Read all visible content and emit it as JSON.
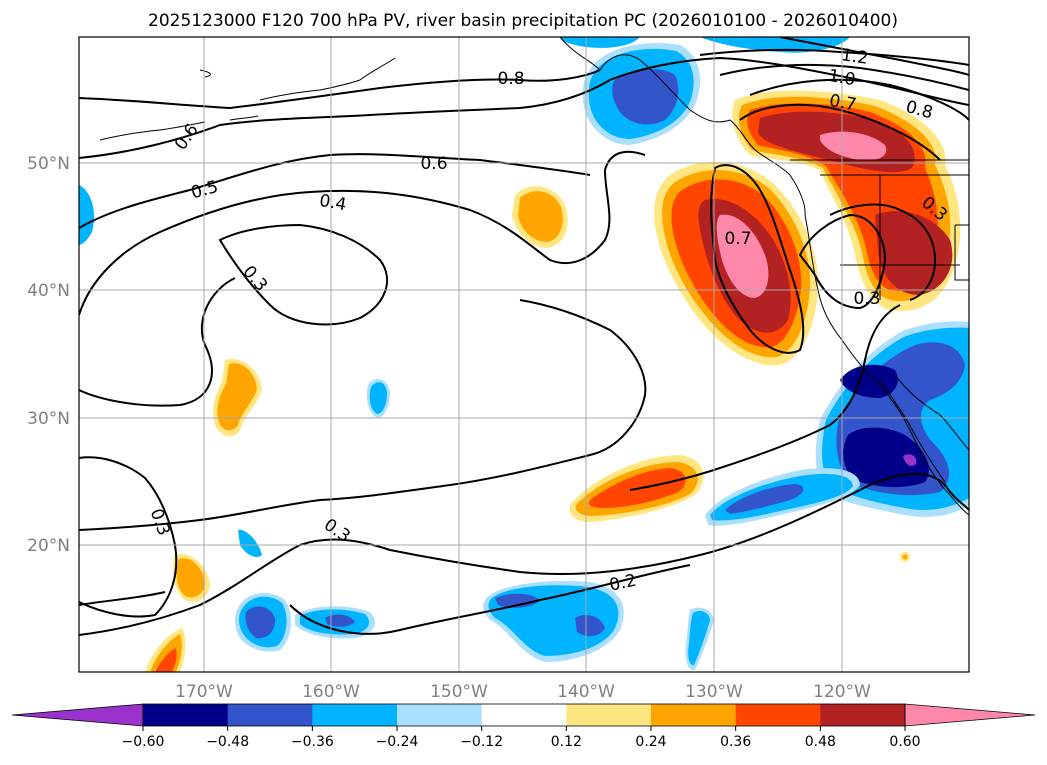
{
  "title": "2025123000 F120 700 hPa PV, river basin precipitation PC (2026010100 - 2026010400)",
  "lat_labels": [
    "50°N",
    "40°N",
    "30°N",
    "20°N"
  ],
  "lon_labels": [
    "170°W",
    "160°W",
    "150°W",
    "140°W",
    "130°W",
    "120°W"
  ],
  "contour_labels": [
    "1.2",
    "1.0",
    "0.8",
    "0.8",
    "0.7",
    "0.6",
    "0.6",
    "0.5",
    "0.4",
    "0.7",
    "0.3",
    "0.3",
    "0.3",
    "0.3",
    "0.3",
    "0.2"
  ],
  "colorbar": {
    "ticks": [
      "−0.60",
      "−0.48",
      "−0.36",
      "−0.24",
      "−0.12",
      "0.12",
      "0.24",
      "0.36",
      "0.48",
      "0.60"
    ],
    "colors": [
      "#9933cc",
      "#000088",
      "#3355cc",
      "#00b4ff",
      "#aadfff",
      "#ffffff",
      "#ffe680",
      "#ffa500",
      "#ff4500",
      "#b22222",
      "#ff88aa"
    ]
  }
}
